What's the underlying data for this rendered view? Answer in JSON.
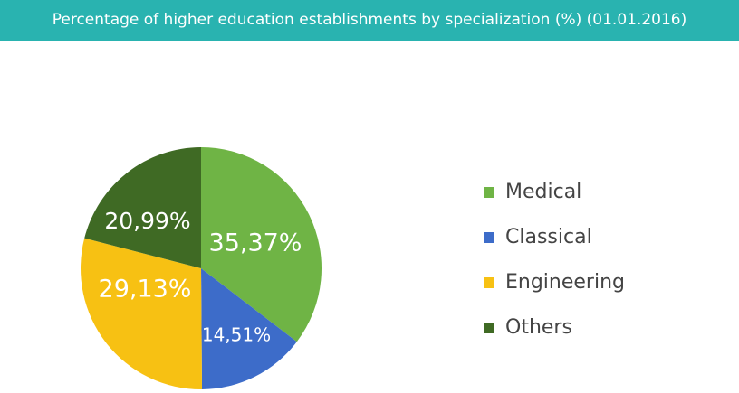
{
  "header": {
    "title": "Percentage of higher education establishments by specialization (%) (01.01.2016)"
  },
  "colors": {
    "header_bg": "#29b3b0",
    "Medical": "#6fb445",
    "Classical": "#3d6cc9",
    "Engineering": "#f7c113",
    "Others": "#3f6a24"
  },
  "chart_data": {
    "type": "pie",
    "title": "Percentage of higher education establishments by specialization (%) (01.01.2016)",
    "slices": [
      {
        "label": "Medical",
        "value": 35.37,
        "display": "35,37%"
      },
      {
        "label": "Classical",
        "value": 14.51,
        "display": "14,51%"
      },
      {
        "label": "Engineering",
        "value": 29.13,
        "display": "29,13%"
      },
      {
        "label": "Others",
        "value": 20.99,
        "display": "20,99%"
      }
    ],
    "legend_position": "right",
    "start": "top, clockwise"
  }
}
